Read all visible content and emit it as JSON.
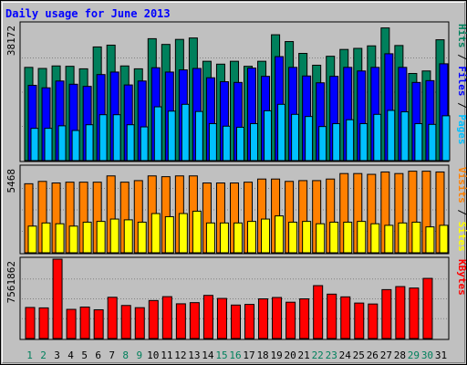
{
  "chart_data": {
    "type": "bar",
    "title": "Daily usage for June 2013",
    "categories": [
      "1",
      "2",
      "3",
      "4",
      "5",
      "6",
      "7",
      "8",
      "9",
      "10",
      "11",
      "12",
      "13",
      "14",
      "15",
      "16",
      "17",
      "18",
      "19",
      "20",
      "21",
      "22",
      "23",
      "24",
      "25",
      "26",
      "27",
      "28",
      "29",
      "30",
      "31"
    ],
    "weekend_days": [
      "1",
      "2",
      "8",
      "9",
      "15",
      "16",
      "22",
      "23",
      "29",
      "30"
    ],
    "panels": [
      {
        "name": "hits-files-pages",
        "max_label": "38172",
        "ylim": [
          0,
          38172
        ],
        "legend": [
          "Pages",
          "Files",
          "Hits"
        ],
        "series": [
          {
            "name": "Hits",
            "color": "#00805c",
            "values": [
              26000,
              25700,
              26400,
              26300,
              25600,
              31700,
              32200,
              26400,
              25600,
              34000,
              32400,
              33800,
              34200,
              27700,
              26900,
              27700,
              26300,
              27700,
              35100,
              33200,
              29900,
              26600,
              29100,
              31000,
              31300,
              32000,
              37000,
              32100,
              24300,
              25000,
              33700
            ]
          },
          {
            "name": "Files",
            "color": "#0000ff",
            "values": [
              21000,
              20300,
              22200,
              21300,
              20700,
              24000,
              24700,
              21100,
              22200,
              25900,
              24700,
              25300,
              25700,
              23100,
              22000,
              21800,
              25800,
              23500,
              29000,
              26000,
              23600,
              21700,
              23500,
              26000,
              25000,
              26000,
              29800,
              26000,
              21800,
              22300,
              27000
            ]
          },
          {
            "name": "Pages",
            "color": "#00c0ff",
            "values": [
              9000,
              9000,
              9700,
              8400,
              10000,
              12800,
              12800,
              10000,
              9400,
              15000,
              13800,
              15700,
              13700,
              10300,
              9600,
              9300,
              10300,
              13900,
              15700,
              12900,
              12300,
              9500,
              10300,
              11400,
              10300,
              12900,
              14000,
              13600,
              10300,
              10100,
              12500
            ]
          }
        ]
      },
      {
        "name": "visits-sites",
        "max_label": "5468",
        "ylim": [
          0,
          5468
        ],
        "legend": [
          "Sites",
          "Visits"
        ],
        "series": [
          {
            "name": "Visits",
            "color": "#ff8000",
            "values": [
              4400,
              4550,
              4450,
              4500,
              4500,
              4500,
              4900,
              4500,
              4600,
              4900,
              4850,
              4900,
              4900,
              4450,
              4450,
              4450,
              4500,
              4700,
              4700,
              4550,
              4600,
              4600,
              4700,
              5050,
              5050,
              5000,
              5150,
              5050,
              5200,
              5200,
              5150
            ]
          },
          {
            "name": "Sites",
            "color": "#ffff00",
            "values": [
              1700,
              1900,
              1850,
              1700,
              1950,
              2000,
              2150,
              2100,
              1950,
              2500,
              2300,
              2500,
              2650,
              1900,
              1900,
              1900,
              2000,
              2150,
              2350,
              1950,
              2000,
              1850,
              1950,
              1950,
              2000,
              1850,
              1750,
              1900,
              1950,
              1650,
              1750
            ]
          }
        ]
      },
      {
        "name": "kbytes",
        "max_label": "7561862",
        "ylim": [
          0,
          7561862
        ],
        "legend": [
          "KBytes"
        ],
        "series": [
          {
            "name": "KBytes",
            "color": "#ff0000",
            "values": [
              2960000,
              2920000,
              7560000,
              2780000,
              3000000,
              2740000,
              3930000,
              3150000,
              2940000,
              3620000,
              3990000,
              3310000,
              3420000,
              4110000,
              3820000,
              3190000,
              3250000,
              3780000,
              3910000,
              3460000,
              3780000,
              5040000,
              4230000,
              3970000,
              3380000,
              3290000,
              4660000,
              4950000,
              4810000,
              5730000,
              0
            ]
          }
        ]
      }
    ]
  }
}
